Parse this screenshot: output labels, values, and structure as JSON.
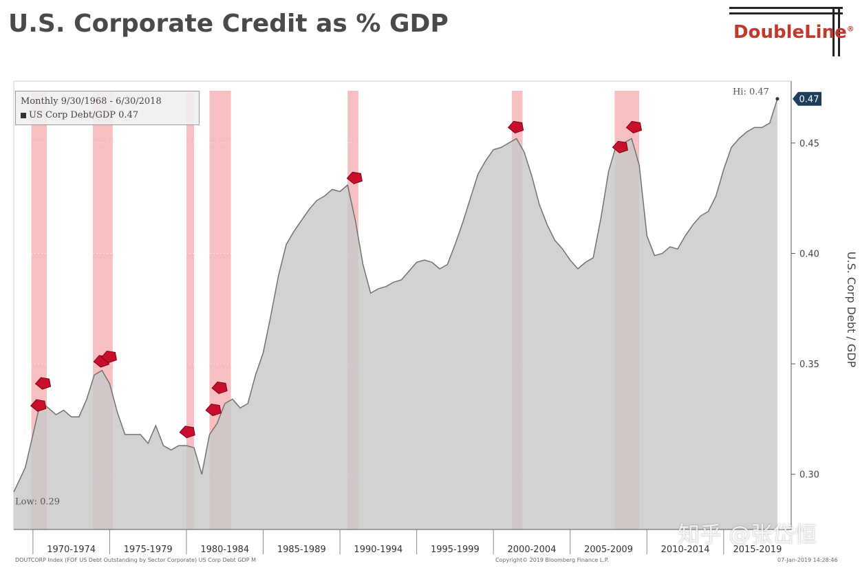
{
  "title": "U.S. Corporate Credit as % GDP",
  "brand": "DoubleLine",
  "brand_mark": "®",
  "watermark": "知乎 @张岱恒",
  "footer": {
    "left": "DOUTCORP Index (FOF US Debt Outstanding by Sector Corporate) US Corp Debt GDP M",
    "center": "Copyright© 2019 Bloomberg Finance L.P.",
    "right": "07-Jan-2019 14:28:46"
  },
  "colors": {
    "area_fill": "#c8c8c8",
    "area_line": "#707070",
    "recession": "#f4a9ad",
    "marker": "#c8102e",
    "current_badge": "#1f3d5c"
  },
  "chart_data": {
    "type": "area",
    "legend": {
      "period": "Monthly 9/30/1968 - 6/30/2018",
      "series": "US Corp Debt/GDP 0.47"
    },
    "ylabel": "U.S. Corp Debt / GDP",
    "ylim": [
      0.275,
      0.478
    ],
    "xlim": [
      1968.75,
      2019.4
    ],
    "y_ticks": [
      "0.30",
      "0.35",
      "0.40",
      "0.45"
    ],
    "y_tick_values": [
      0.3,
      0.35,
      0.4,
      0.45
    ],
    "x_period_labels": [
      "1970-1974",
      "1975-1979",
      "1980-1984",
      "1985-1989",
      "1990-1994",
      "1995-1999",
      "2000-2004",
      "2005-2009",
      "2010-2014",
      "2015-2019"
    ],
    "x_period_starts": [
      1970,
      1975,
      1980,
      1985,
      1990,
      1995,
      2000,
      2005,
      2010,
      2015
    ],
    "annotations": {
      "high_label": "Hi: 0.47",
      "low_label": "Low: 0.29",
      "current": "0.47"
    },
    "high": {
      "x": 2018.5,
      "y": 0.47
    },
    "low": {
      "x": 1968.75,
      "y": 0.292
    },
    "recessions": [
      [
        1969.9,
        1970.9
      ],
      [
        1973.9,
        1975.2
      ],
      [
        1980.0,
        1980.5
      ],
      [
        1981.5,
        1982.9
      ],
      [
        1990.5,
        1991.2
      ],
      [
        2001.2,
        2001.9
      ],
      [
        2007.9,
        2009.5
      ]
    ],
    "peak_markers": [
      {
        "x": 1970.4,
        "y": 0.331
      },
      {
        "x": 1970.7,
        "y": 0.341
      },
      {
        "x": 1974.5,
        "y": 0.351
      },
      {
        "x": 1975.0,
        "y": 0.353
      },
      {
        "x": 1980.1,
        "y": 0.319
      },
      {
        "x": 1981.8,
        "y": 0.329
      },
      {
        "x": 1982.2,
        "y": 0.339
      },
      {
        "x": 1991.0,
        "y": 0.434
      },
      {
        "x": 2001.5,
        "y": 0.457
      },
      {
        "x": 2008.3,
        "y": 0.448
      },
      {
        "x": 2009.2,
        "y": 0.457
      }
    ],
    "series": [
      {
        "name": "US Corp Debt/GDP",
        "x": [
          1968.75,
          1969.5,
          1970.0,
          1970.5,
          1971.0,
          1971.5,
          1972.0,
          1972.5,
          1973.0,
          1973.5,
          1974.0,
          1974.5,
          1975.0,
          1975.5,
          1976.0,
          1976.5,
          1977.0,
          1977.5,
          1978.0,
          1978.5,
          1979.0,
          1979.5,
          1980.0,
          1980.5,
          1981.0,
          1981.5,
          1982.0,
          1982.5,
          1983.0,
          1983.5,
          1984.0,
          1984.5,
          1985.0,
          1985.5,
          1986.0,
          1986.5,
          1987.0,
          1987.5,
          1988.0,
          1988.5,
          1989.0,
          1989.5,
          1990.0,
          1990.5,
          1991.0,
          1991.5,
          1992.0,
          1992.5,
          1993.0,
          1993.5,
          1994.0,
          1994.5,
          1995.0,
          1995.5,
          1996.0,
          1996.5,
          1997.0,
          1997.5,
          1998.0,
          1998.5,
          1999.0,
          1999.5,
          2000.0,
          2000.5,
          2001.0,
          2001.5,
          2002.0,
          2002.5,
          2003.0,
          2003.5,
          2004.0,
          2004.5,
          2005.0,
          2005.5,
          2006.0,
          2006.5,
          2007.0,
          2007.5,
          2008.0,
          2008.5,
          2009.0,
          2009.5,
          2010.0,
          2010.5,
          2011.0,
          2011.5,
          2012.0,
          2012.5,
          2013.0,
          2013.5,
          2014.0,
          2014.5,
          2015.0,
          2015.5,
          2016.0,
          2016.5,
          2017.0,
          2017.5,
          2018.0,
          2018.5
        ],
        "y": [
          0.292,
          0.303,
          0.318,
          0.333,
          0.33,
          0.327,
          0.329,
          0.326,
          0.326,
          0.334,
          0.345,
          0.347,
          0.341,
          0.328,
          0.318,
          0.318,
          0.318,
          0.314,
          0.322,
          0.313,
          0.311,
          0.313,
          0.313,
          0.312,
          0.3,
          0.318,
          0.323,
          0.332,
          0.334,
          0.33,
          0.332,
          0.345,
          0.355,
          0.372,
          0.39,
          0.404,
          0.41,
          0.415,
          0.42,
          0.424,
          0.426,
          0.429,
          0.428,
          0.431,
          0.415,
          0.395,
          0.382,
          0.384,
          0.385,
          0.387,
          0.388,
          0.392,
          0.396,
          0.397,
          0.396,
          0.393,
          0.395,
          0.404,
          0.414,
          0.425,
          0.436,
          0.442,
          0.447,
          0.448,
          0.45,
          0.452,
          0.446,
          0.435,
          0.422,
          0.413,
          0.406,
          0.402,
          0.397,
          0.393,
          0.396,
          0.398,
          0.416,
          0.437,
          0.449,
          0.45,
          0.452,
          0.44,
          0.408,
          0.399,
          0.4,
          0.403,
          0.402,
          0.408,
          0.413,
          0.417,
          0.419,
          0.426,
          0.438,
          0.448,
          0.452,
          0.455,
          0.457,
          0.457,
          0.459,
          0.47
        ]
      }
    ]
  }
}
